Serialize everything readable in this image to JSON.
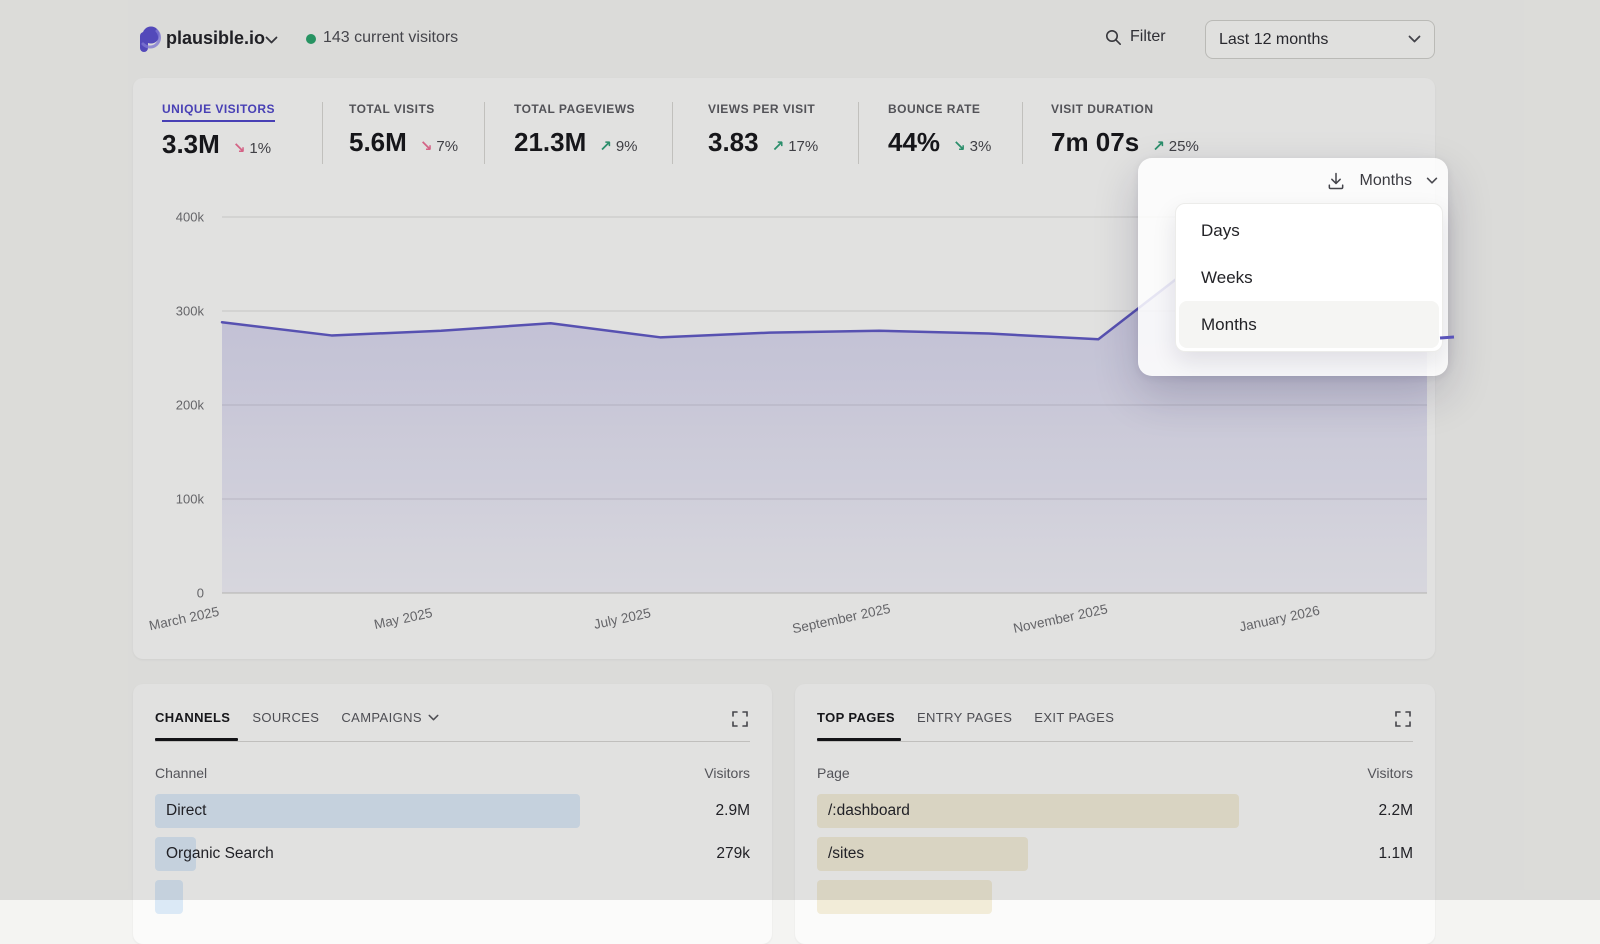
{
  "colors": {
    "accent": "#4f46c9",
    "positive": "#2f9e77",
    "negative": "#ec6e95",
    "live_dot": "#2aa36c"
  },
  "header": {
    "site_name": "plausible.io",
    "current_visitors": "143 current visitors",
    "filter_label": "Filter",
    "date_range": "Last 12 months"
  },
  "icons": [
    "plausible-logo",
    "chevron-down-icon",
    "live-dot",
    "search-icon",
    "download-icon",
    "expand-icon"
  ],
  "stats": [
    {
      "label": "UNIQUE VISITORS",
      "value": "3.3M",
      "arrow": "↘",
      "change": "1%",
      "trend": "down",
      "color": "#ec6e95",
      "active": true
    },
    {
      "label": "TOTAL VISITS",
      "value": "5.6M",
      "arrow": "↘",
      "change": "7%",
      "trend": "down",
      "color": "#ec6e95"
    },
    {
      "label": "TOTAL PAGEVIEWS",
      "value": "21.3M",
      "arrow": "↗",
      "change": "9%",
      "trend": "up",
      "color": "#2f9e77"
    },
    {
      "label": "VIEWS PER VISIT",
      "value": "3.83",
      "arrow": "↗",
      "change": "17%",
      "trend": "up",
      "color": "#2f9e77"
    },
    {
      "label": "BOUNCE RATE",
      "value": "44%",
      "arrow": "↘",
      "change": "3%",
      "trend": "down",
      "color": "#2f9e77"
    },
    {
      "label": "VISIT DURATION",
      "value": "7m 07s",
      "arrow": "↗",
      "change": "25%",
      "trend": "up",
      "color": "#2f9e77"
    }
  ],
  "chart_data": {
    "type": "area",
    "title": "Unique visitors, monthly, last 12 months",
    "x": [
      "March 2025",
      "April 2025",
      "May 2025",
      "June 2025",
      "July 2025",
      "August 2025",
      "September 2025",
      "October 2025",
      "November 2025",
      "December 2025",
      "January 2026",
      "February 2026"
    ],
    "values": [
      288000,
      274000,
      279000,
      287000,
      272000,
      277000,
      279000,
      276000,
      270000,
      360000,
      272000,
      268000
    ],
    "x_tick_labels": [
      "March 2025",
      "May 2025",
      "July 2025",
      "September 2025",
      "November 2025",
      "January 2026"
    ],
    "y_ticks": [
      0,
      100000,
      200000,
      300000,
      400000
    ],
    "y_tick_labels": [
      "0",
      "100k",
      "200k",
      "300k",
      "400k"
    ],
    "ylim": [
      0,
      400000
    ],
    "grid": "horizontal",
    "legend": "none",
    "line_color": "#6059c5"
  },
  "interval_dropdown": {
    "selected": "Months",
    "options": [
      "Days",
      "Weeks",
      "Months"
    ],
    "highlighted_option": "Months"
  },
  "channels_card": {
    "tabs": [
      "CHANNELS",
      "SOURCES",
      "CAMPAIGNS"
    ],
    "active_tab": "CHANNELS",
    "columns": {
      "name": "Channel",
      "value": "Visitors"
    },
    "bar_color": "#dbe9f6",
    "rows": [
      {
        "label": "Direct",
        "value": "2.9M",
        "bar_ratio": 1.0
      },
      {
        "label": "Organic Search",
        "value": "279k",
        "bar_ratio": 0.096
      }
    ],
    "partial_row_bar_ratio": 0.066
  },
  "pages_card": {
    "tabs": [
      "TOP PAGES",
      "ENTRY PAGES",
      "EXIT PAGES"
    ],
    "active_tab": "TOP PAGES",
    "columns": {
      "name": "Page",
      "value": "Visitors"
    },
    "bar_color": "#f2ecd8",
    "rows": [
      {
        "label": "/:dashboard",
        "value": "2.2M",
        "bar_ratio": 1.0
      },
      {
        "label": "/sites",
        "value": "1.1M",
        "bar_ratio": 0.5
      }
    ],
    "partial_row_bar_ratio": 0.415
  }
}
